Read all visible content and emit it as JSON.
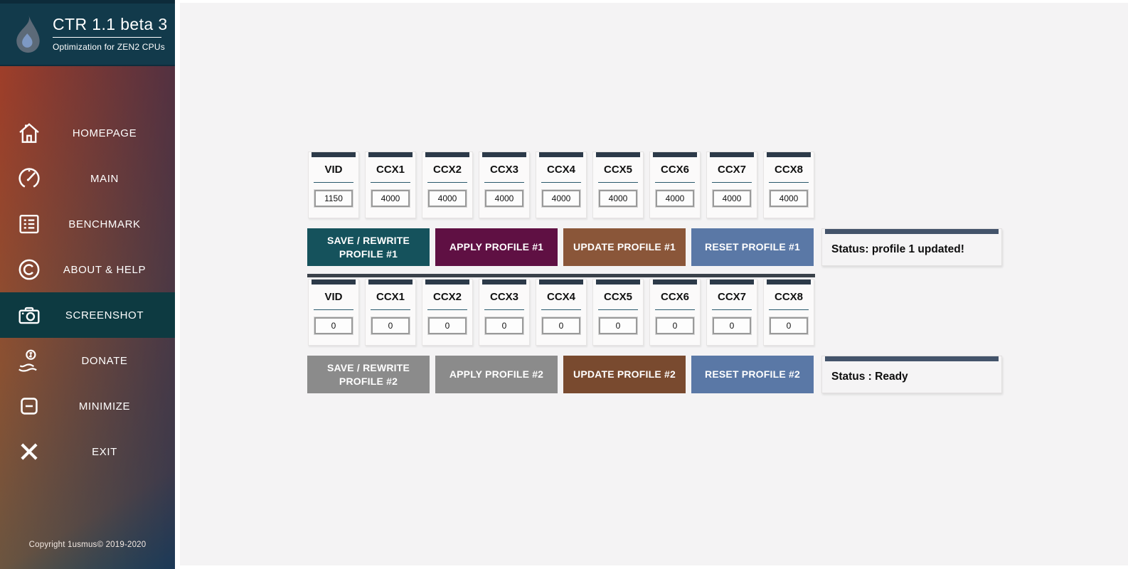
{
  "app": {
    "title": "CTR 1.1 beta 3",
    "subtitle": "Optimization for ZEN2 CPUs",
    "copyright": "Copyright 1usmus© 2019-2020"
  },
  "sidebar": {
    "items": [
      {
        "label": "HOMEPAGE",
        "icon": "home-icon",
        "active": false
      },
      {
        "label": "MAIN",
        "icon": "gauge-icon",
        "active": false
      },
      {
        "label": "BENCHMARK",
        "icon": "benchmark-list-icon",
        "active": false
      },
      {
        "label": "ABOUT & HELP",
        "icon": "copyright-icon",
        "active": false
      },
      {
        "label": "SCREENSHOT",
        "icon": "camera-icon",
        "active": true
      },
      {
        "label": "DONATE",
        "icon": "donate-hand-icon",
        "active": false
      },
      {
        "label": "MINIMIZE",
        "icon": "minimize-icon",
        "active": false
      },
      {
        "label": "EXIT",
        "icon": "exit-icon",
        "active": false
      }
    ]
  },
  "profiles": [
    {
      "cells": [
        {
          "label": "VID",
          "value": "1150"
        },
        {
          "label": "CCX1",
          "value": "4000"
        },
        {
          "label": "CCX2",
          "value": "4000"
        },
        {
          "label": "CCX3",
          "value": "4000"
        },
        {
          "label": "CCX4",
          "value": "4000"
        },
        {
          "label": "CCX5",
          "value": "4000"
        },
        {
          "label": "CCX6",
          "value": "4000"
        },
        {
          "label": "CCX7",
          "value": "4000"
        },
        {
          "label": "CCX8",
          "value": "4000"
        }
      ],
      "buttons": [
        {
          "label": "SAVE / REWRITE PROFILE #1",
          "color": "#15525c"
        },
        {
          "label": "APPLY PROFILE #1",
          "color": "#5f1043"
        },
        {
          "label": "UPDATE PROFILE #1",
          "color": "#8a5639"
        },
        {
          "label": "RESET PROFILE #1",
          "color": "#5a78a6"
        }
      ],
      "status": "Status: profile 1 updated!"
    },
    {
      "cells": [
        {
          "label": "VID",
          "value": "0"
        },
        {
          "label": "CCX1",
          "value": "0"
        },
        {
          "label": "CCX2",
          "value": "0"
        },
        {
          "label": "CCX3",
          "value": "0"
        },
        {
          "label": "CCX4",
          "value": "0"
        },
        {
          "label": "CCX5",
          "value": "0"
        },
        {
          "label": "CCX6",
          "value": "0"
        },
        {
          "label": "CCX7",
          "value": "0"
        },
        {
          "label": "CCX8",
          "value": "0"
        }
      ],
      "buttons": [
        {
          "label": "SAVE / REWRITE PROFILE #2",
          "color": "#8b8b8b"
        },
        {
          "label": "APPLY PROFILE #2",
          "color": "#8b8b8b"
        },
        {
          "label": "UPDATE PROFILE #2",
          "color": "#794a2f"
        },
        {
          "label": "RESET PROFILE #2",
          "color": "#5a78a6"
        }
      ],
      "status": "Status : Ready"
    }
  ],
  "palette": {
    "sidebar_top_left": "#a43d28",
    "sidebar_top_right": "#3f3153",
    "sidebar_bottom_left": "#7a5536",
    "sidebar_bottom_right": "#204a55",
    "header_bg": "#123a4b",
    "active_item_bg": "#0d3a41",
    "panel_bg": "#f4f3f4",
    "card_top_bar": "#2c3a49",
    "status_top_bar": "#43536a",
    "group_separator": "#3a414a"
  }
}
